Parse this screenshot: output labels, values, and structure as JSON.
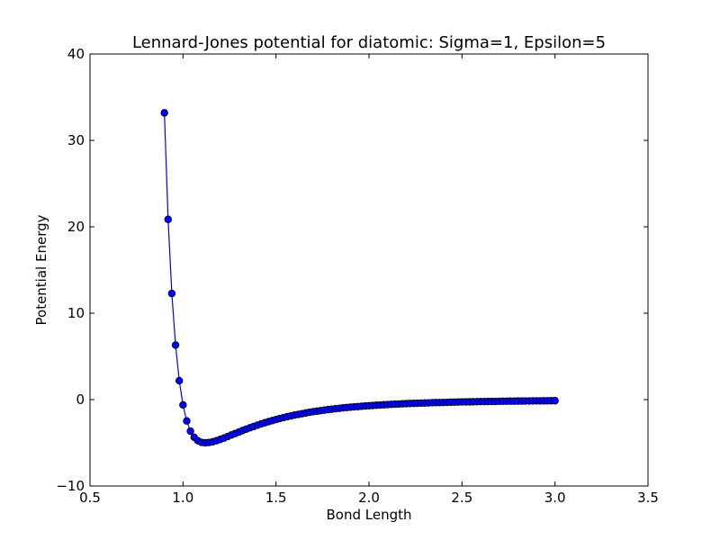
{
  "chart_data": {
    "type": "line",
    "title": "Lennard-Jones potential for diatomic: Sigma=1, Epsilon=5",
    "xlabel": "Bond Length",
    "ylabel": "Potential Energy",
    "xlim": [
      0.5,
      3.5
    ],
    "ylim": [
      -10,
      40
    ],
    "xticks": [
      0.5,
      1.0,
      1.5,
      2.0,
      2.5,
      3.0,
      3.5
    ],
    "xtick_labels": [
      "0.5",
      "1.0",
      "1.5",
      "2.0",
      "2.5",
      "3.0",
      "3.5"
    ],
    "yticks": [
      -10,
      0,
      10,
      20,
      30,
      40
    ],
    "ytick_labels": [
      "−10",
      "0",
      "10",
      "20",
      "30",
      "40"
    ],
    "grid": false,
    "marker": "circle",
    "colors": {
      "line": "#0000ff",
      "marker_fill": "#0000ff",
      "marker_edge": "#000000"
    },
    "series": [
      {
        "x": [
          0.9,
          0.92,
          0.94,
          0.96,
          0.98,
          1.0,
          1.02,
          1.04,
          1.06,
          1.08,
          1.1,
          1.12,
          1.14,
          1.16,
          1.18,
          1.2,
          1.22,
          1.24,
          1.26,
          1.28,
          1.3,
          1.32,
          1.34,
          1.36,
          1.38,
          1.4,
          1.42,
          1.44,
          1.46,
          1.48,
          1.5,
          1.52,
          1.54,
          1.56,
          1.58,
          1.6,
          1.62,
          1.64,
          1.66,
          1.68,
          1.7,
          1.72,
          1.74,
          1.76,
          1.78,
          1.8,
          1.82,
          1.84,
          1.86,
          1.88,
          1.9,
          1.92,
          1.94,
          1.96,
          1.98,
          2.0,
          2.02,
          2.04,
          2.06,
          2.08,
          2.1,
          2.12,
          2.14,
          2.16,
          2.18,
          2.2,
          2.22,
          2.24,
          2.26,
          2.28,
          2.3,
          2.32,
          2.34,
          2.36,
          2.38,
          2.4,
          2.42,
          2.44,
          2.46,
          2.48,
          2.5,
          2.52,
          2.54,
          2.56,
          2.58,
          2.6,
          2.62,
          2.64,
          2.66,
          2.68,
          2.7,
          2.72,
          2.74,
          2.76,
          2.78,
          2.8,
          2.82,
          2.84,
          2.86,
          2.88,
          2.9,
          2.92,
          2.94,
          2.96,
          2.98,
          3.0
        ],
        "y": [
          33.19,
          20.86,
          12.28,
          6.31,
          2.18,
          -0.62,
          -2.47,
          -3.65,
          -4.36,
          -4.76,
          -4.95,
          -5.0,
          -4.97,
          -4.88,
          -4.76,
          -4.61,
          -4.45,
          -4.28,
          -4.1,
          -3.93,
          -3.76,
          -3.59,
          -3.42,
          -3.26,
          -3.11,
          -2.96,
          -2.82,
          -2.68,
          -2.55,
          -2.43,
          -2.31,
          -2.19,
          -2.09,
          -1.98,
          -1.89,
          -1.79,
          -1.71,
          -1.63,
          -1.55,
          -1.47,
          -1.4,
          -1.34,
          -1.28,
          -1.22,
          -1.16,
          -1.11,
          -1.06,
          -1.01,
          -0.96,
          -0.92,
          -0.88,
          -0.84,
          -0.81,
          -0.77,
          -0.74,
          -0.71,
          -0.68,
          -0.65,
          -0.63,
          -0.6,
          -0.58,
          -0.55,
          -0.53,
          -0.51,
          -0.49,
          -0.47,
          -0.45,
          -0.44,
          -0.42,
          -0.41,
          -0.39,
          -0.38,
          -0.36,
          -0.35,
          -0.34,
          -0.33,
          -0.32,
          -0.3,
          -0.29,
          -0.28,
          -0.27,
          -0.27,
          -0.26,
          -0.25,
          -0.24,
          -0.23,
          -0.23,
          -0.22,
          -0.21,
          -0.21,
          -0.2,
          -0.19,
          -0.19,
          -0.18,
          -0.18,
          -0.17,
          -0.17,
          -0.16,
          -0.16,
          -0.15,
          -0.15,
          -0.15,
          -0.14,
          -0.14,
          -0.13,
          -0.13
        ]
      }
    ]
  }
}
